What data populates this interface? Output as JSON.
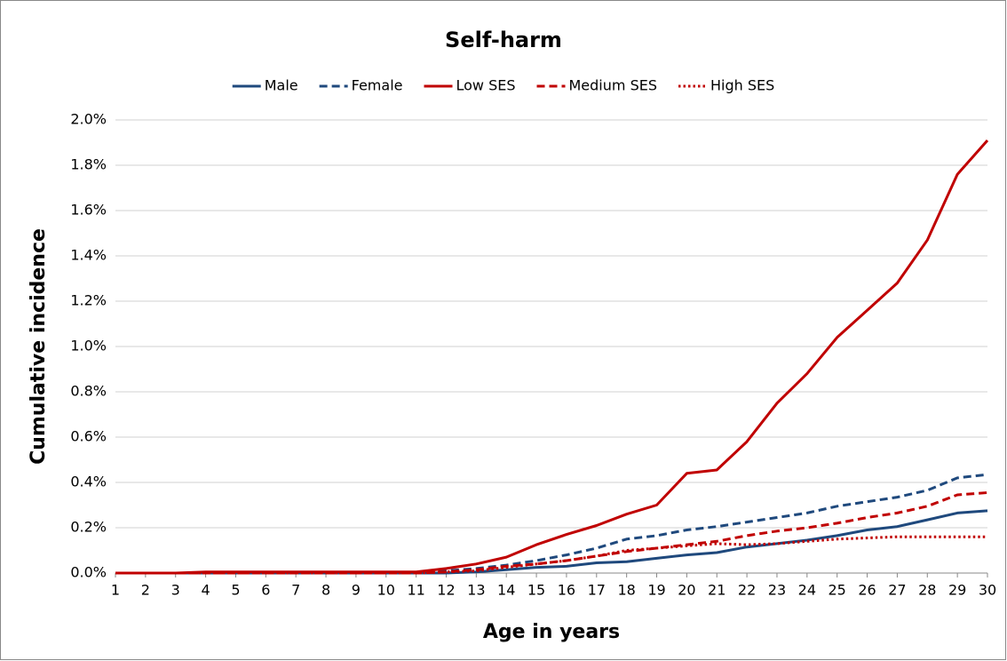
{
  "chart_data": {
    "type": "line",
    "title": "Self-harm",
    "x_label": "Age in years",
    "y_label": "Cumulative incidence",
    "categories": [
      1,
      2,
      3,
      4,
      5,
      6,
      7,
      8,
      9,
      10,
      11,
      12,
      13,
      14,
      15,
      16,
      17,
      18,
      19,
      20,
      21,
      22,
      23,
      24,
      25,
      26,
      27,
      28,
      29,
      30
    ],
    "series": [
      {
        "name": "Male",
        "color": "#1f497d",
        "dash": "solid",
        "values": [
          0,
          0,
          0,
          0,
          0,
          0,
          0,
          0,
          0,
          0,
          0,
          0,
          0.005,
          0.015,
          0.025,
          0.03,
          0.045,
          0.05,
          0.065,
          0.08,
          0.09,
          0.115,
          0.13,
          0.145,
          0.165,
          0.19,
          0.205,
          0.235,
          0.265,
          0.275
        ]
      },
      {
        "name": "Female",
        "color": "#1f497d",
        "dash": "dashed",
        "values": [
          0,
          0,
          0,
          0,
          0,
          0,
          0,
          0,
          0,
          0,
          0,
          0.01,
          0.02,
          0.035,
          0.055,
          0.08,
          0.11,
          0.15,
          0.165,
          0.19,
          0.205,
          0.225,
          0.245,
          0.265,
          0.295,
          0.315,
          0.335,
          0.365,
          0.42,
          0.435
        ]
      },
      {
        "name": "Low SES",
        "color": "#c00000",
        "dash": "solid",
        "values": [
          0,
          0,
          0,
          0.005,
          0.005,
          0.005,
          0.005,
          0.005,
          0.005,
          0.005,
          0.005,
          0.02,
          0.04,
          0.07,
          0.125,
          0.17,
          0.21,
          0.26,
          0.3,
          0.44,
          0.455,
          0.58,
          0.75,
          0.88,
          1.04,
          1.16,
          1.28,
          1.47,
          1.76,
          1.91
        ]
      },
      {
        "name": "Medium SES",
        "color": "#c00000",
        "dash": "dashed",
        "values": [
          0,
          0,
          0,
          0,
          0,
          0,
          0,
          0,
          0,
          0,
          0,
          0.005,
          0.015,
          0.03,
          0.04,
          0.055,
          0.075,
          0.095,
          0.11,
          0.125,
          0.14,
          0.165,
          0.185,
          0.2,
          0.22,
          0.245,
          0.265,
          0.295,
          0.345,
          0.355
        ]
      },
      {
        "name": "High SES",
        "color": "#c00000",
        "dash": "dotted",
        "values": [
          0,
          0,
          0,
          0,
          0,
          0,
          0,
          0,
          0,
          0,
          0,
          0.005,
          0.01,
          0.025,
          0.04,
          0.055,
          0.075,
          0.1,
          0.11,
          0.12,
          0.13,
          0.125,
          0.13,
          0.14,
          0.15,
          0.155,
          0.16,
          0.16,
          0.16,
          0.16
        ]
      }
    ],
    "ylim": [
      0,
      2.0
    ],
    "yticks": [
      {
        "value": 0,
        "label": "0.0%"
      },
      {
        "value": 0.2,
        "label": "0.2%"
      },
      {
        "value": 0.4,
        "label": "0.4%"
      },
      {
        "value": 0.6,
        "label": "0.6%"
      },
      {
        "value": 0.8,
        "label": "0.8%"
      },
      {
        "value": 1.0,
        "label": "1.0%"
      },
      {
        "value": 1.2,
        "label": "1.2%"
      },
      {
        "value": 1.4,
        "label": "1.4%"
      },
      {
        "value": 1.6,
        "label": "1.6%"
      },
      {
        "value": 1.8,
        "label": "1.8%"
      },
      {
        "value": 2.0,
        "label": "2.0%"
      }
    ],
    "grid": true,
    "legend": "top"
  }
}
